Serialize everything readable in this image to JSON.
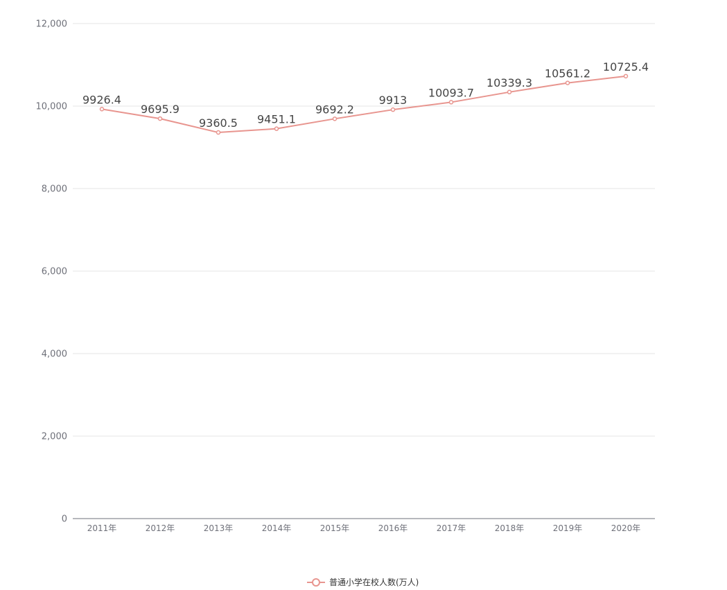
{
  "chart_data": {
    "type": "line",
    "categories": [
      "2011年",
      "2012年",
      "2013年",
      "2014年",
      "2015年",
      "2016年",
      "2017年",
      "2018年",
      "2019年",
      "2020年"
    ],
    "series": [
      {
        "name": "普通小学在校人数(万人)",
        "values": [
          9926.4,
          9695.9,
          9360.5,
          9451.1,
          9692.2,
          9913,
          10093.7,
          10339.3,
          10561.2,
          10725.4
        ],
        "value_labels": [
          "9926.4",
          "9695.9",
          "9360.5",
          "9451.1",
          "9692.2",
          "9913",
          "10093.7",
          "10339.3",
          "10561.2",
          "10725.4"
        ],
        "color": "#e8958f"
      }
    ],
    "y_ticks": [
      "0",
      "2,000",
      "4,000",
      "6,000",
      "8,000",
      "10,000",
      "12,000"
    ],
    "ylim": [
      0,
      12000
    ],
    "grid": true,
    "legend_position": "bottom-center"
  }
}
